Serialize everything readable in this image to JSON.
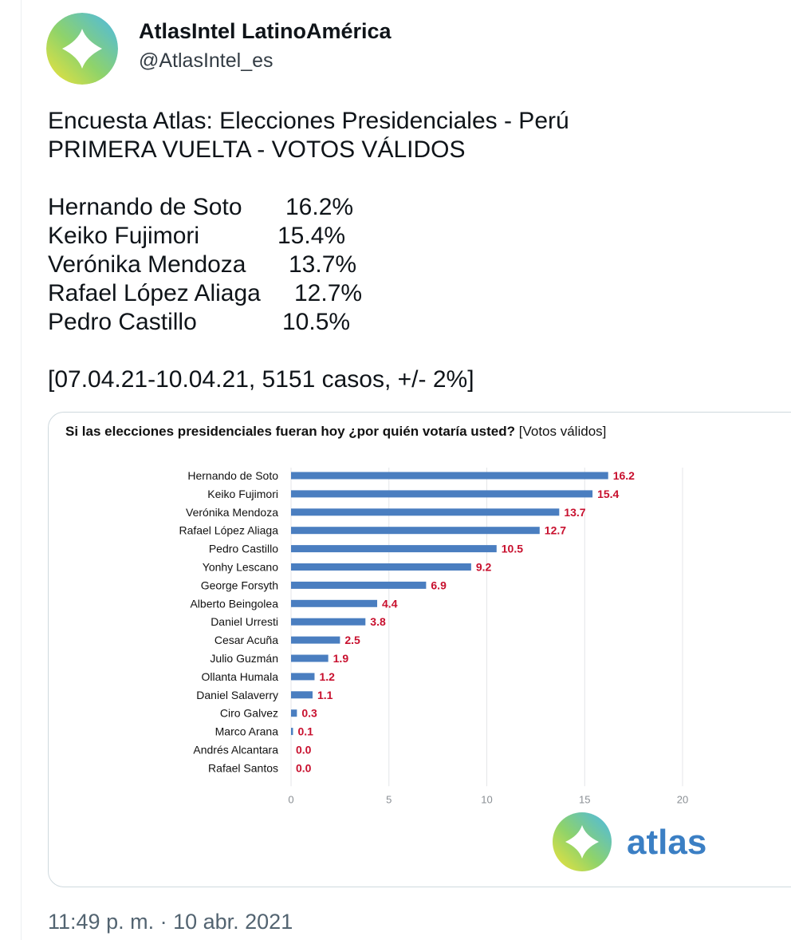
{
  "author": {
    "name": "AtlasIntel LatinoAmérica",
    "handle": "@AtlasIntel_es"
  },
  "tweet": {
    "line1": "Encuesta Atlas: Elecciones Presidenciales - Perú",
    "line2": "PRIMERA VUELTA - VOTOS VÁLIDOS",
    "results": [
      {
        "name": "Hernando de Soto",
        "pct": "16.2%"
      },
      {
        "name": "Keiko Fujimori",
        "pct": "15.4%"
      },
      {
        "name": "Verónika Mendoza",
        "pct": "13.7%"
      },
      {
        "name": "Rafael López Aliaga",
        "pct": "12.7%"
      },
      {
        "name": "Pedro Castillo",
        "pct": "10.5%"
      }
    ],
    "footnote": "[07.04.21-10.04.21, 5151 casos, +/- 2%]"
  },
  "chart_data": {
    "type": "bar",
    "orientation": "horizontal",
    "title": "Si las elecciones presidenciales fueran hoy ¿por quién votaría usted?",
    "subtitle": "[Votos válidos]",
    "categories": [
      "Hernando de Soto",
      "Keiko Fujimori",
      "Verónika Mendoza",
      "Rafael López Aliaga",
      "Pedro Castillo",
      "Yonhy Lescano",
      "George Forsyth",
      "Alberto Beingolea",
      "Daniel Urresti",
      "Cesar Acuña",
      "Julio Guzmán",
      "Ollanta Humala",
      "Daniel Salaverry",
      "Ciro Galvez",
      "Marco Arana",
      "Andrés Alcantara",
      "Rafael Santos"
    ],
    "values": [
      16.2,
      15.4,
      13.7,
      12.7,
      10.5,
      9.2,
      6.9,
      4.4,
      3.8,
      2.5,
      1.9,
      1.2,
      1.1,
      0.3,
      0.1,
      0.0,
      0.0
    ],
    "value_labels": [
      "16.2",
      "15.4",
      "13.7",
      "12.7",
      "10.5",
      "9.2",
      "6.9",
      "4.4",
      "3.8",
      "2.5",
      "1.9",
      "1.2",
      "1.1",
      "0.3",
      "0.1",
      "0.0",
      "0.0"
    ],
    "xticks": [
      0,
      5,
      10,
      15,
      20
    ],
    "xlim": [
      0,
      20
    ],
    "bar_color": "#4a7ec0",
    "label_color": "#c8102e",
    "grid": true
  },
  "brand": {
    "logo_text": "atlas",
    "color": "#3b7fc4"
  },
  "timestamp": "11:49 p. m. · 10 abr. 2021"
}
